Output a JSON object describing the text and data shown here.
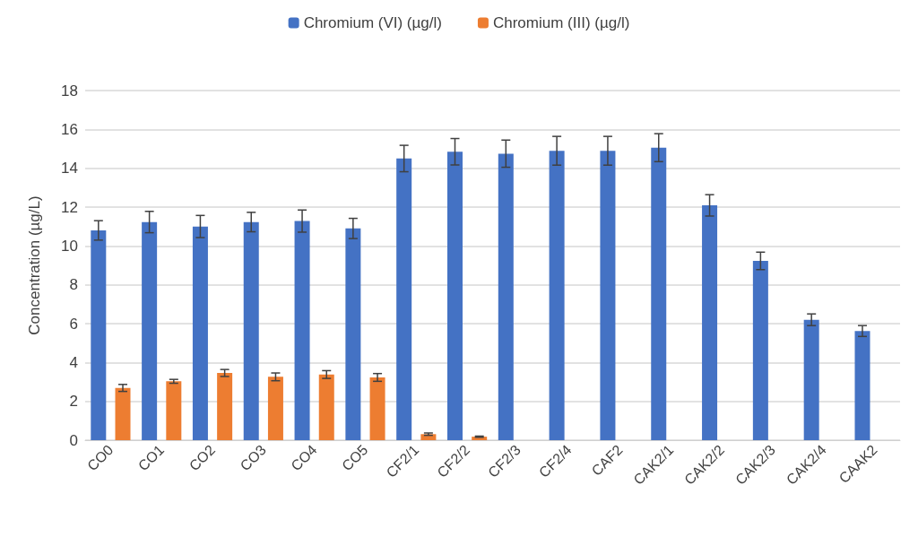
{
  "chart_data": {
    "type": "bar",
    "ylabel": "Concentration (µg/L)",
    "categories": [
      "CO0",
      "CO1",
      "CO2",
      "CO3",
      "CO4",
      "CO5",
      "CF2/1",
      "CF2/2",
      "CF2/3",
      "CF2/4",
      "CAF2",
      "CAK2/1",
      "CAK2/2",
      "CAK2/3",
      "CAK2/4",
      "CAAK2"
    ],
    "series": [
      {
        "name": "Chromium (VI) (µg/l)",
        "color": "#4472c4",
        "values": [
          10.8,
          11.23,
          11.0,
          11.23,
          11.28,
          10.9,
          14.5,
          14.85,
          14.75,
          14.9,
          14.9,
          15.06,
          12.09,
          9.23,
          6.2,
          5.62
        ],
        "errors": [
          0.5,
          0.55,
          0.57,
          0.5,
          0.57,
          0.52,
          0.68,
          0.68,
          0.7,
          0.74,
          0.74,
          0.72,
          0.55,
          0.45,
          0.3,
          0.28
        ]
      },
      {
        "name": "Chromium (III) (µg/l)",
        "color": "#ed7d31",
        "values": [
          2.69,
          3.03,
          3.46,
          3.26,
          3.38,
          3.23,
          0.31,
          0.18,
          null,
          null,
          null,
          null,
          null,
          null,
          null,
          null
        ],
        "errors": [
          0.18,
          0.1,
          0.18,
          0.2,
          0.2,
          0.2,
          0.06,
          0.03,
          null,
          null,
          null,
          null,
          null,
          null,
          null,
          null
        ]
      }
    ],
    "ylim": [
      0,
      18
    ],
    "yticks": [
      0,
      2,
      4,
      6,
      8,
      10,
      12,
      14,
      16,
      18
    ],
    "grid": "y",
    "legend": "top"
  }
}
